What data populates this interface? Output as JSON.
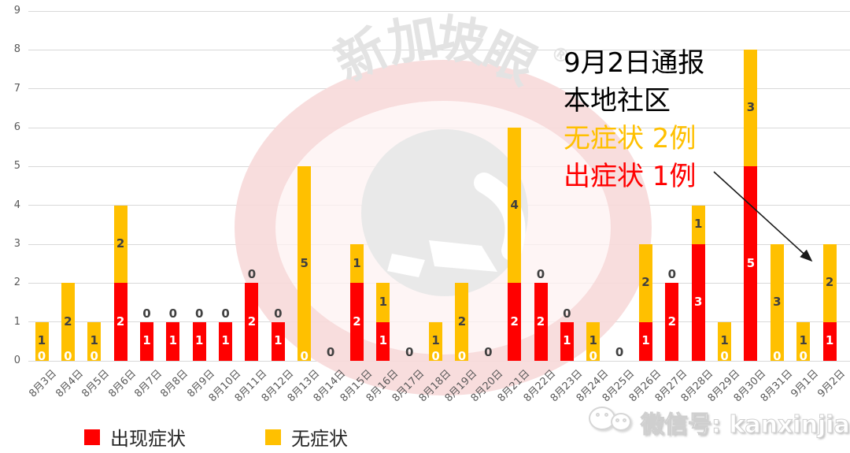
{
  "chart_data": {
    "type": "bar",
    "stacked": true,
    "title": "",
    "xlabel": "",
    "ylabel": "",
    "ylim": [
      0,
      9
    ],
    "yticks": [
      0,
      1,
      2,
      3,
      4,
      5,
      6,
      7,
      8,
      9
    ],
    "grid": true,
    "legend_position": "bottom",
    "categories": [
      "8月3日",
      "8月4日",
      "8月5日",
      "8月6日",
      "8月7日",
      "8月8日",
      "8月9日",
      "8月10日",
      "8月11日",
      "8月12日",
      "8月13日",
      "8月14日",
      "8月15日",
      "8月16日",
      "8月17日",
      "8月18日",
      "8月19日",
      "8月20日",
      "8月21日",
      "8月22日",
      "8月23日",
      "8月24日",
      "8月25日",
      "8月26日",
      "8月27日",
      "8月28日",
      "8月29日",
      "8月30日",
      "8月31日",
      "9月1日",
      "9月2日"
    ],
    "series": [
      {
        "name": "出现症状",
        "color": "#ff0000",
        "label_color": "#ffffff",
        "values": [
          0,
          0,
          0,
          2,
          1,
          1,
          1,
          1,
          2,
          1,
          0,
          0,
          2,
          1,
          0,
          0,
          0,
          0,
          2,
          2,
          1,
          0,
          0,
          1,
          2,
          3,
          0,
          5,
          0,
          0,
          1
        ]
      },
      {
        "name": "无症状",
        "color": "#ffc000",
        "label_color": "#404040",
        "values": [
          1,
          2,
          1,
          2,
          0,
          0,
          0,
          0,
          0,
          0,
          5,
          0,
          1,
          1,
          0,
          1,
          2,
          0,
          4,
          0,
          0,
          1,
          0,
          2,
          0,
          1,
          1,
          3,
          3,
          1,
          2
        ]
      }
    ],
    "zero_label_color": "#404040"
  },
  "annotation": {
    "lines": [
      {
        "text": "9月2日通报",
        "color": "#000000"
      },
      {
        "text": "本地社区",
        "color": "#000000"
      },
      {
        "text": "无症状 2例",
        "color": "#ffc000"
      },
      {
        "text": "出症状 1例",
        "color": "#ff0000"
      }
    ]
  },
  "watermark": {
    "chars": [
      "新",
      "加",
      "坡",
      "眼"
    ],
    "registered": "®"
  },
  "footer": {
    "wechat_label": "微信号: kanxinjiapo"
  },
  "colors": {
    "gridline": "#d9d9d9",
    "axis_text": "#595959",
    "watermark_ring": "#f7d9d9",
    "watermark_inner": "#fdf1f1",
    "watermark_circle": "#e9e9e9"
  }
}
